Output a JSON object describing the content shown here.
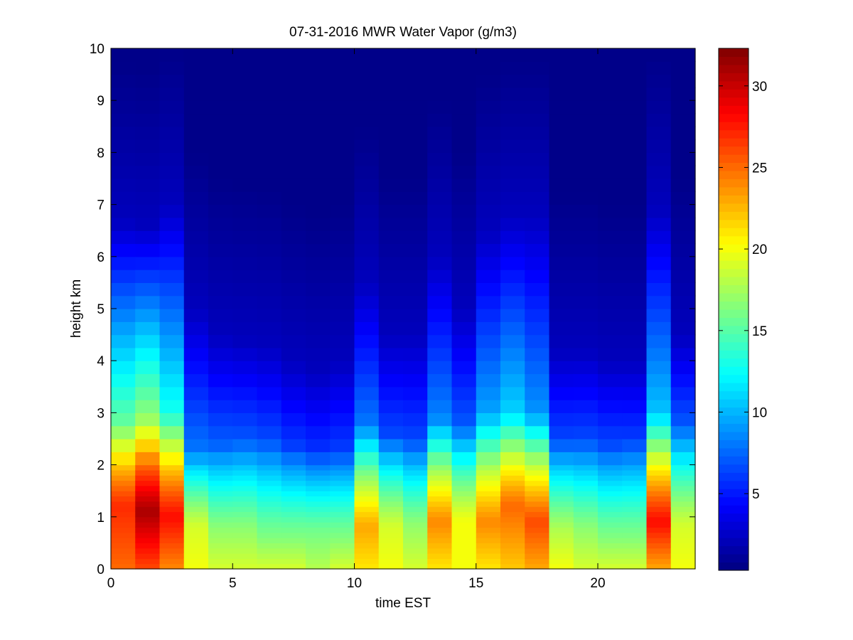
{
  "chart_data": {
    "type": "heatmap",
    "title": "07-31-2016 MWR Water Vapor (g/m3)",
    "xlabel": "time EST",
    "ylabel": "height km",
    "xlim": [
      0,
      24
    ],
    "ylim": [
      0,
      10
    ],
    "xticks": [
      0,
      5,
      10,
      15,
      20
    ],
    "yticks": [
      0,
      1,
      2,
      3,
      4,
      5,
      6,
      7,
      8,
      9,
      10
    ],
    "colorbar": {
      "range": [
        0.3,
        32.3
      ],
      "ticks": [
        5,
        10,
        15,
        20,
        25,
        30
      ],
      "colormap": "jet"
    },
    "cell_width_hours": 1,
    "heights_km": [
      0.0,
      0.1,
      0.2,
      0.3,
      0.4,
      0.5,
      0.6,
      0.7,
      0.8,
      0.9,
      1.0,
      1.1,
      1.2,
      1.3,
      1.4,
      1.5,
      1.6,
      1.7,
      1.8,
      1.9,
      2.0,
      2.25,
      2.5,
      2.75,
      3.0,
      3.25,
      3.5,
      3.75,
      4.0,
      4.25,
      4.5,
      4.75,
      5.0,
      5.25,
      5.5,
      5.75,
      6.0,
      6.25,
      6.5,
      6.75,
      7.0,
      7.25,
      7.5,
      7.75,
      8.0,
      8.25,
      8.5,
      8.75,
      9.0,
      9.25,
      9.5,
      9.75
    ],
    "time_profiles": [
      {
        "t": 0.5,
        "surface": 25,
        "peak": 27,
        "peak_h": 1.2,
        "bl_top": 2.8,
        "mid": 12.5,
        "top": 6.7
      },
      {
        "t": 1.5,
        "surface": 26,
        "peak": 31,
        "peak_h": 1.1,
        "bl_top": 2.9,
        "mid": 14.0,
        "top": 6.6
      },
      {
        "t": 2.5,
        "surface": 24,
        "peak": 28,
        "peak_h": 1.0,
        "bl_top": 3.0,
        "mid": 10.0,
        "top": 7.0
      },
      {
        "t": 3.5,
        "surface": 20,
        "peak": 19,
        "peak_h": 0.8,
        "bl_top": 2.3,
        "mid": 5.0,
        "top": 5.0
      },
      {
        "t": 4.5,
        "surface": 19,
        "peak": 17,
        "peak_h": 0.7,
        "bl_top": 2.4,
        "mid": 4.3,
        "top": 4.5
      },
      {
        "t": 5.5,
        "surface": 19,
        "peak": 17,
        "peak_h": 0.7,
        "bl_top": 2.5,
        "mid": 4.0,
        "top": 4.4
      },
      {
        "t": 6.5,
        "surface": 19,
        "peak": 16,
        "peak_h": 0.7,
        "bl_top": 2.5,
        "mid": 3.6,
        "top": 4.3
      },
      {
        "t": 7.5,
        "surface": 19,
        "peak": 16,
        "peak_h": 0.7,
        "bl_top": 2.4,
        "mid": 3.0,
        "top": 4.0
      },
      {
        "t": 8.5,
        "surface": 18,
        "peak": 16,
        "peak_h": 0.7,
        "bl_top": 2.3,
        "mid": 2.8,
        "top": 3.8
      },
      {
        "t": 9.5,
        "surface": 19,
        "peak": 16,
        "peak_h": 0.7,
        "bl_top": 2.3,
        "mid": 3.2,
        "top": 4.0
      },
      {
        "t": 10.5,
        "surface": 21,
        "peak": 23,
        "peak_h": 0.8,
        "bl_top": 2.8,
        "mid": 5.0,
        "top": 5.5
      },
      {
        "t": 11.5,
        "surface": 20,
        "peak": 19,
        "peak_h": 0.8,
        "bl_top": 2.6,
        "mid": 3.5,
        "top": 4.5
      },
      {
        "t": 12.5,
        "surface": 19,
        "peak": 17,
        "peak_h": 0.8,
        "bl_top": 2.5,
        "mid": 3.5,
        "top": 4.5
      },
      {
        "t": 13.5,
        "surface": 21,
        "peak": 24,
        "peak_h": 0.9,
        "bl_top": 2.9,
        "mid": 5.5,
        "top": 6.0
      },
      {
        "t": 14.5,
        "surface": 20,
        "peak": 20,
        "peak_h": 0.9,
        "bl_top": 2.8,
        "mid": 4.0,
        "top": 5.0
      },
      {
        "t": 15.5,
        "surface": 21,
        "peak": 24,
        "peak_h": 0.9,
        "bl_top": 3.0,
        "mid": 6.5,
        "top": 6.5
      },
      {
        "t": 16.5,
        "surface": 22,
        "peak": 25,
        "peak_h": 1.2,
        "bl_top": 3.0,
        "mid": 8.0,
        "top": 6.8
      },
      {
        "t": 17.5,
        "surface": 23,
        "peak": 26,
        "peak_h": 0.9,
        "bl_top": 3.0,
        "mid": 6.0,
        "top": 6.8
      },
      {
        "t": 18.5,
        "surface": 20,
        "peak": 18,
        "peak_h": 0.7,
        "bl_top": 2.5,
        "mid": 3.5,
        "top": 4.2
      },
      {
        "t": 19.5,
        "surface": 19,
        "peak": 17,
        "peak_h": 0.7,
        "bl_top": 2.5,
        "mid": 3.6,
        "top": 4.2
      },
      {
        "t": 20.5,
        "surface": 19,
        "peak": 16,
        "peak_h": 0.7,
        "bl_top": 2.4,
        "mid": 3.5,
        "top": 4.0
      },
      {
        "t": 21.5,
        "surface": 19,
        "peak": 16,
        "peak_h": 0.7,
        "bl_top": 2.5,
        "mid": 3.2,
        "top": 4.0
      },
      {
        "t": 22.5,
        "surface": 23,
        "peak": 28,
        "peak_h": 0.9,
        "bl_top": 3.0,
        "mid": 7.5,
        "top": 6.9
      },
      {
        "t": 23.5,
        "surface": 20,
        "peak": 19,
        "peak_h": 0.8,
        "bl_top": 2.8,
        "mid": 4.0,
        "top": 4.5
      }
    ]
  }
}
